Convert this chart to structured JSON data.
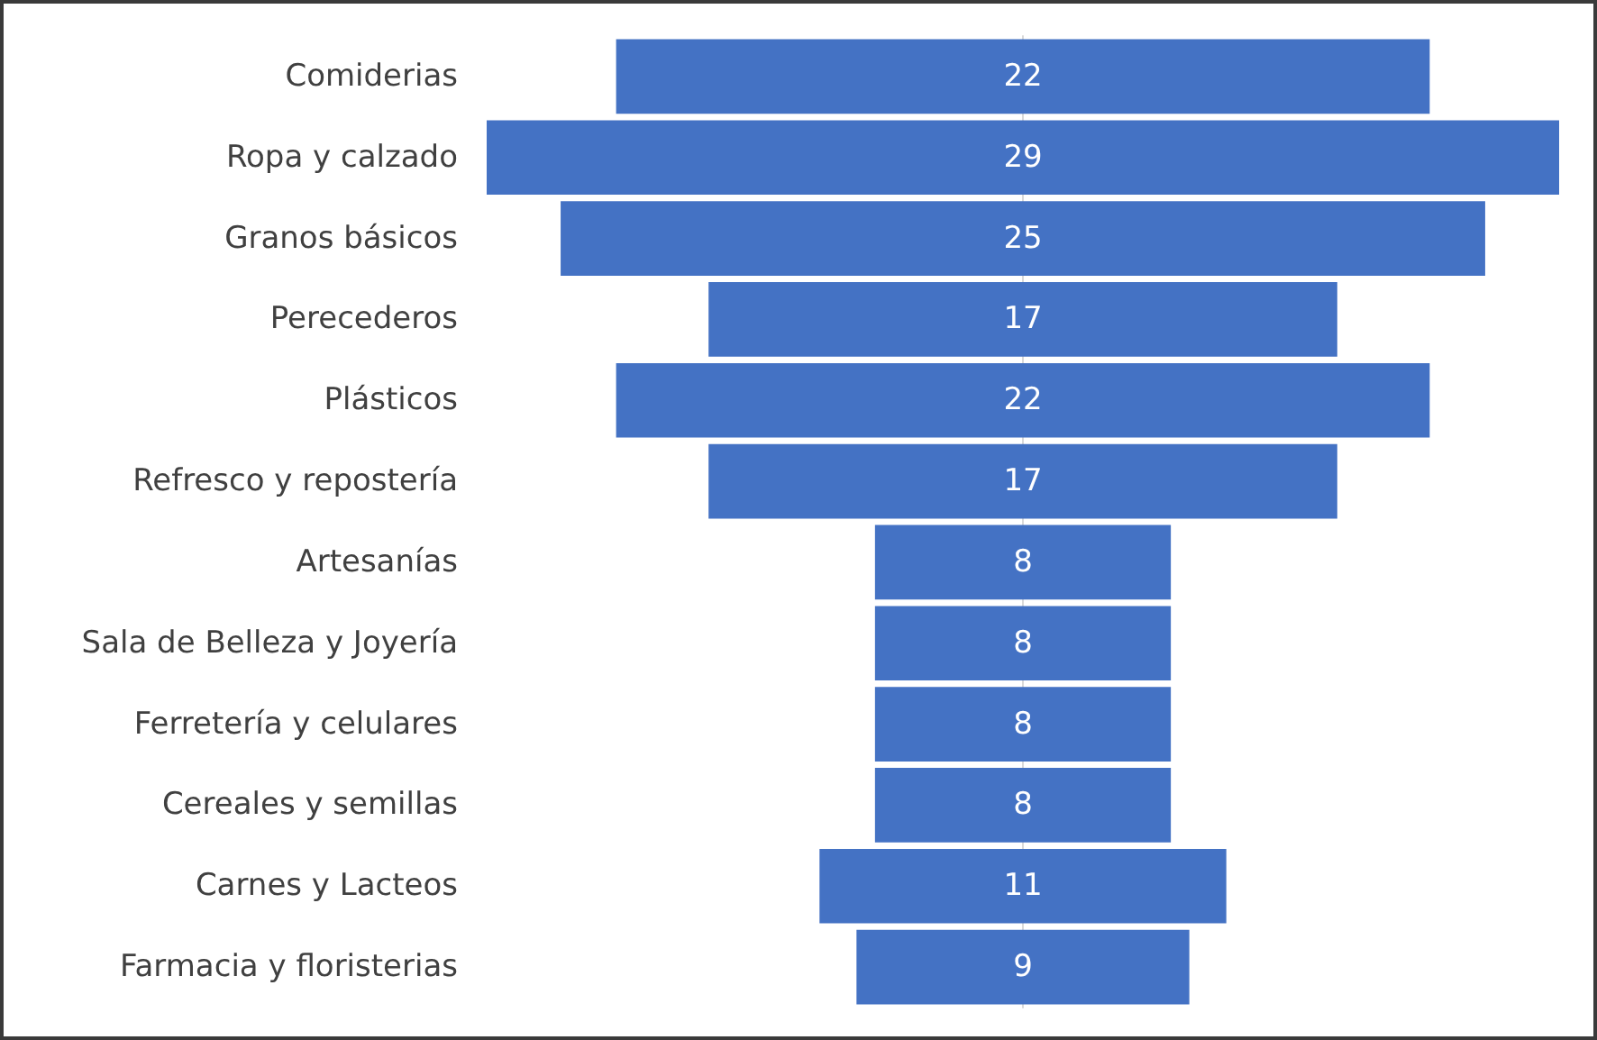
{
  "chart_data": {
    "type": "other",
    "categories": [
      "Comiderias",
      "Ropa y calzado",
      "Granos básicos",
      "Perecederos",
      "Plásticos",
      "Refresco y repostería",
      "Artesanías",
      "Sala de Belleza y Joyería",
      "Ferretería y celulares",
      "Cereales y semillas",
      "Carnes y Lacteos",
      "Farmacia y floristerias"
    ],
    "values": [
      22,
      29,
      25,
      17,
      22,
      17,
      8,
      8,
      8,
      8,
      11,
      9
    ],
    "color": "#4472c4",
    "data_labels": true
  }
}
